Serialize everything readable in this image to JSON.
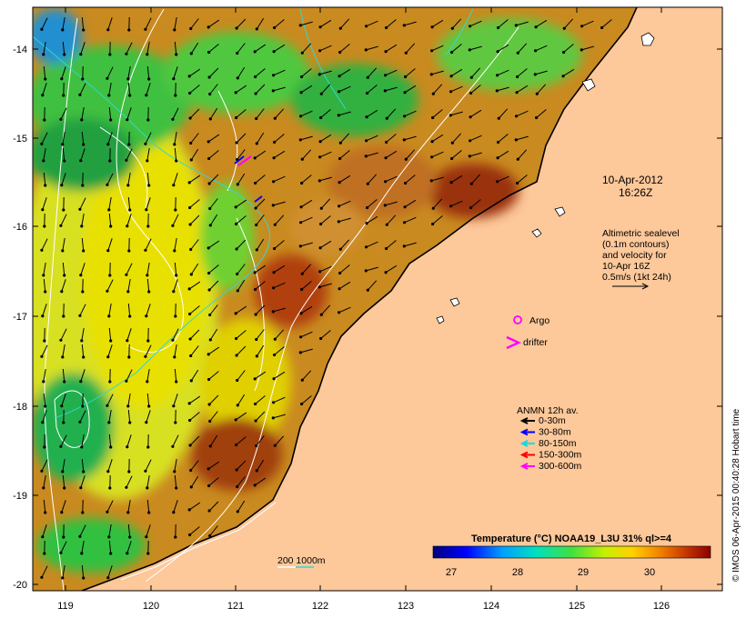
{
  "map": {
    "lon_ticks": [
      "119",
      "120",
      "121",
      "122",
      "123",
      "124",
      "125",
      "126"
    ],
    "lat_ticks": [
      "-14",
      "-15",
      "-16",
      "-17",
      "-18",
      "-19",
      "-20"
    ],
    "date": "10-Apr-2012",
    "time": "16:26Z",
    "altimetry": {
      "line1": "Altimetric sealevel",
      "line2": "(0.1m contours)",
      "line3": "and velocity for",
      "line4": "10-Apr 16Z",
      "line5": "0.5m/s (1kt 24h)"
    },
    "argo_label": "Argo",
    "drifter_label": "drifter",
    "anmn": {
      "title": "ANMN 12h av.",
      "items": [
        {
          "label": "0-30m",
          "color": "#000000"
        },
        {
          "label": "30-80m",
          "color": "#0000ff"
        },
        {
          "label": "80-150m",
          "color": "#00e0e0"
        },
        {
          "label": "150-300m",
          "color": "#ff0000"
        },
        {
          "label": "300-600m",
          "color": "#ff00ff"
        }
      ]
    },
    "bathy_label": "200  1000m",
    "colorbar": {
      "title": "Temperature (°C) NOAA19_L3U 31% ql>=4",
      "ticks": [
        "27",
        "28",
        "29",
        "30"
      ]
    },
    "credit": "© IMOS 06-Apr-2015 00:40:28 Hobart time",
    "colors": {
      "land": "#fdc89a",
      "sst_cold": "#00008b",
      "sst_mid": "#7fe800",
      "sst_warm": "#8b1a00"
    }
  }
}
